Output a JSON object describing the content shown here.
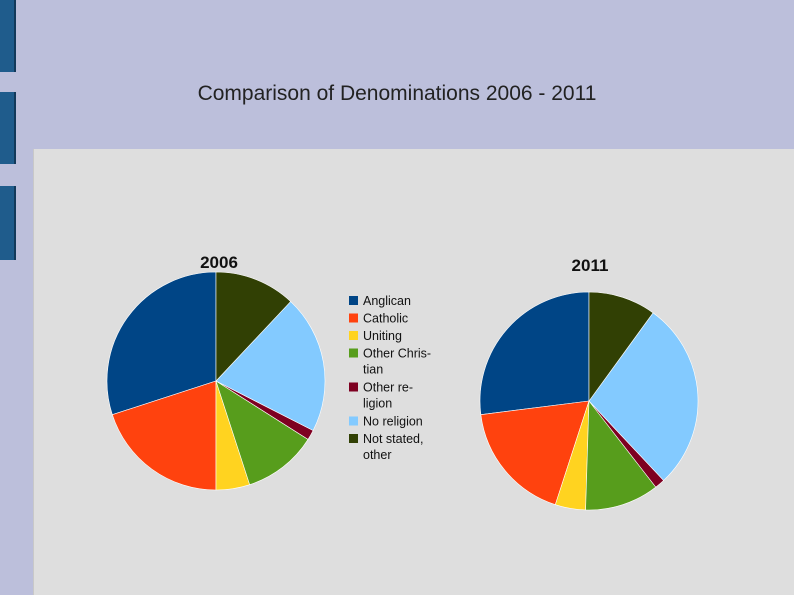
{
  "slide": {
    "title": "Comparison of Denominations 2006 - 2011"
  },
  "legend": {
    "items": [
      {
        "lines": [
          "Anglican"
        ],
        "color": "#004586"
      },
      {
        "lines": [
          "Catholic"
        ],
        "color": "#ff420e"
      },
      {
        "lines": [
          "Uniting"
        ],
        "color": "#ffd320"
      },
      {
        "lines": [
          "Other Chris-",
          "tian"
        ],
        "color": "#579d1c"
      },
      {
        "lines": [
          "Other re-",
          "ligion"
        ],
        "color": "#7e0021"
      },
      {
        "lines": [
          "No religion"
        ],
        "color": "#83caff"
      },
      {
        "lines": [
          "Not stated,",
          "other"
        ],
        "color": "#314004"
      }
    ]
  },
  "chart_data": [
    {
      "type": "pie",
      "title": "2006",
      "categories": [
        "Anglican",
        "Catholic",
        "Uniting",
        "Other Christian",
        "Other religion",
        "No religion",
        "Not stated, other"
      ],
      "values": [
        30,
        20,
        5,
        11,
        1.5,
        20.5,
        12
      ],
      "colors": [
        "#004586",
        "#ff420e",
        "#ffd320",
        "#579d1c",
        "#7e0021",
        "#83caff",
        "#314004"
      ],
      "start_angle_deg": 0,
      "direction": "counter-clockwise",
      "legend": "center"
    },
    {
      "type": "pie",
      "title": "2011",
      "categories": [
        "Anglican",
        "Catholic",
        "Uniting",
        "Other Christian",
        "Other religion",
        "No religion",
        "Not stated, other"
      ],
      "values": [
        27,
        18,
        4.5,
        11,
        1.5,
        28,
        10
      ],
      "colors": [
        "#004586",
        "#ff420e",
        "#ffd320",
        "#579d1c",
        "#7e0021",
        "#83caff",
        "#314004"
      ],
      "start_angle_deg": 0,
      "direction": "counter-clockwise",
      "legend": "center"
    }
  ]
}
